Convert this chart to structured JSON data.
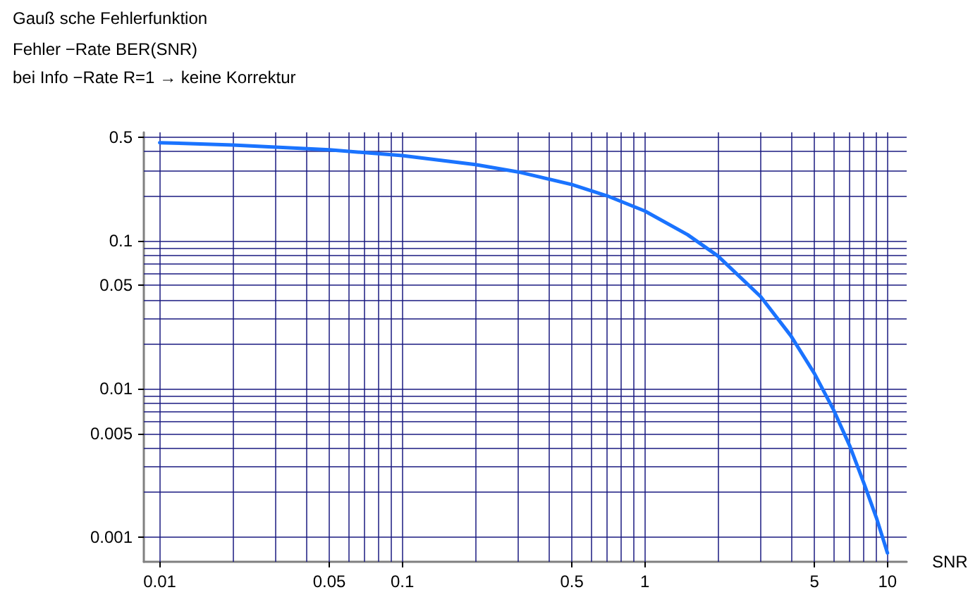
{
  "chart_data": {
    "type": "line",
    "title": "Gauß sche Fehlerfunktion",
    "subtitle": "Fehler −Rate BER(SNR)\nbei Info −Rate R=1 → keine Korrektur",
    "xlabel": "SNR",
    "x": [
      0.01,
      0.02,
      0.05,
      0.1,
      0.2,
      0.3,
      0.5,
      0.7,
      1,
      1.5,
      2,
      3,
      4,
      5,
      6,
      7,
      8,
      9,
      10
    ],
    "series": [
      {
        "color": "#1a73ff",
        "values": [
          0.46,
          0.444,
          0.412,
          0.376,
          0.327,
          0.292,
          0.24,
          0.201,
          0.159,
          0.11,
          0.079,
          0.042,
          0.0228,
          0.0127,
          0.0072,
          0.0041,
          0.0023,
          0.00135,
          0.00078
        ]
      }
    ],
    "log": "xy",
    "xlim": [
      0.0086,
      12
    ],
    "ylim": [
      0.00068,
      0.54
    ],
    "xticks": [
      0.01,
      {
        "value": 0.02,
        "label": null
      },
      {
        "value": 0.03,
        "label": null
      },
      {
        "value": 0.04,
        "label": null
      },
      0.05,
      {
        "value": 0.06,
        "label": null
      },
      {
        "value": 0.07,
        "label": null
      },
      {
        "value": 0.08,
        "label": null
      },
      {
        "value": 0.09,
        "label": null
      },
      0.1,
      {
        "value": 0.2,
        "label": null
      },
      {
        "value": 0.3,
        "label": null
      },
      {
        "value": 0.4,
        "label": null
      },
      0.5,
      {
        "value": 0.6,
        "label": null
      },
      {
        "value": 0.7,
        "label": null
      },
      {
        "value": 0.8,
        "label": null
      },
      {
        "value": 0.9,
        "label": null
      },
      1,
      {
        "value": 2,
        "label": null
      },
      {
        "value": 3,
        "label": null
      },
      {
        "value": 4,
        "label": null
      },
      5,
      {
        "value": 6,
        "label": null
      },
      {
        "value": 7,
        "label": null
      },
      {
        "value": 8,
        "label": null
      },
      {
        "value": 9,
        "label": null
      },
      10
    ],
    "yticks": [
      0.001,
      {
        "value": 0.002,
        "label": null
      },
      {
        "value": 0.003,
        "label": null
      },
      {
        "value": 0.004,
        "label": null
      },
      0.005,
      {
        "value": 0.006,
        "label": null
      },
      {
        "value": 0.007,
        "label": null
      },
      {
        "value": 0.008,
        "label": null
      },
      {
        "value": 0.009,
        "label": null
      },
      0.01,
      {
        "value": 0.02,
        "label": null
      },
      {
        "value": 0.03,
        "label": null
      },
      {
        "value": 0.04,
        "label": null
      },
      0.05,
      {
        "value": 0.06,
        "label": null
      },
      {
        "value": 0.07,
        "label": null
      },
      {
        "value": 0.08,
        "label": null
      },
      {
        "value": 0.09,
        "label": null
      },
      0.1,
      {
        "value": 0.2,
        "label": null
      },
      {
        "value": 0.3,
        "label": null
      },
      {
        "value": 0.4,
        "label": null
      },
      0.5
    ],
    "grid": true,
    "marker": "none",
    "line_style": "solid"
  }
}
